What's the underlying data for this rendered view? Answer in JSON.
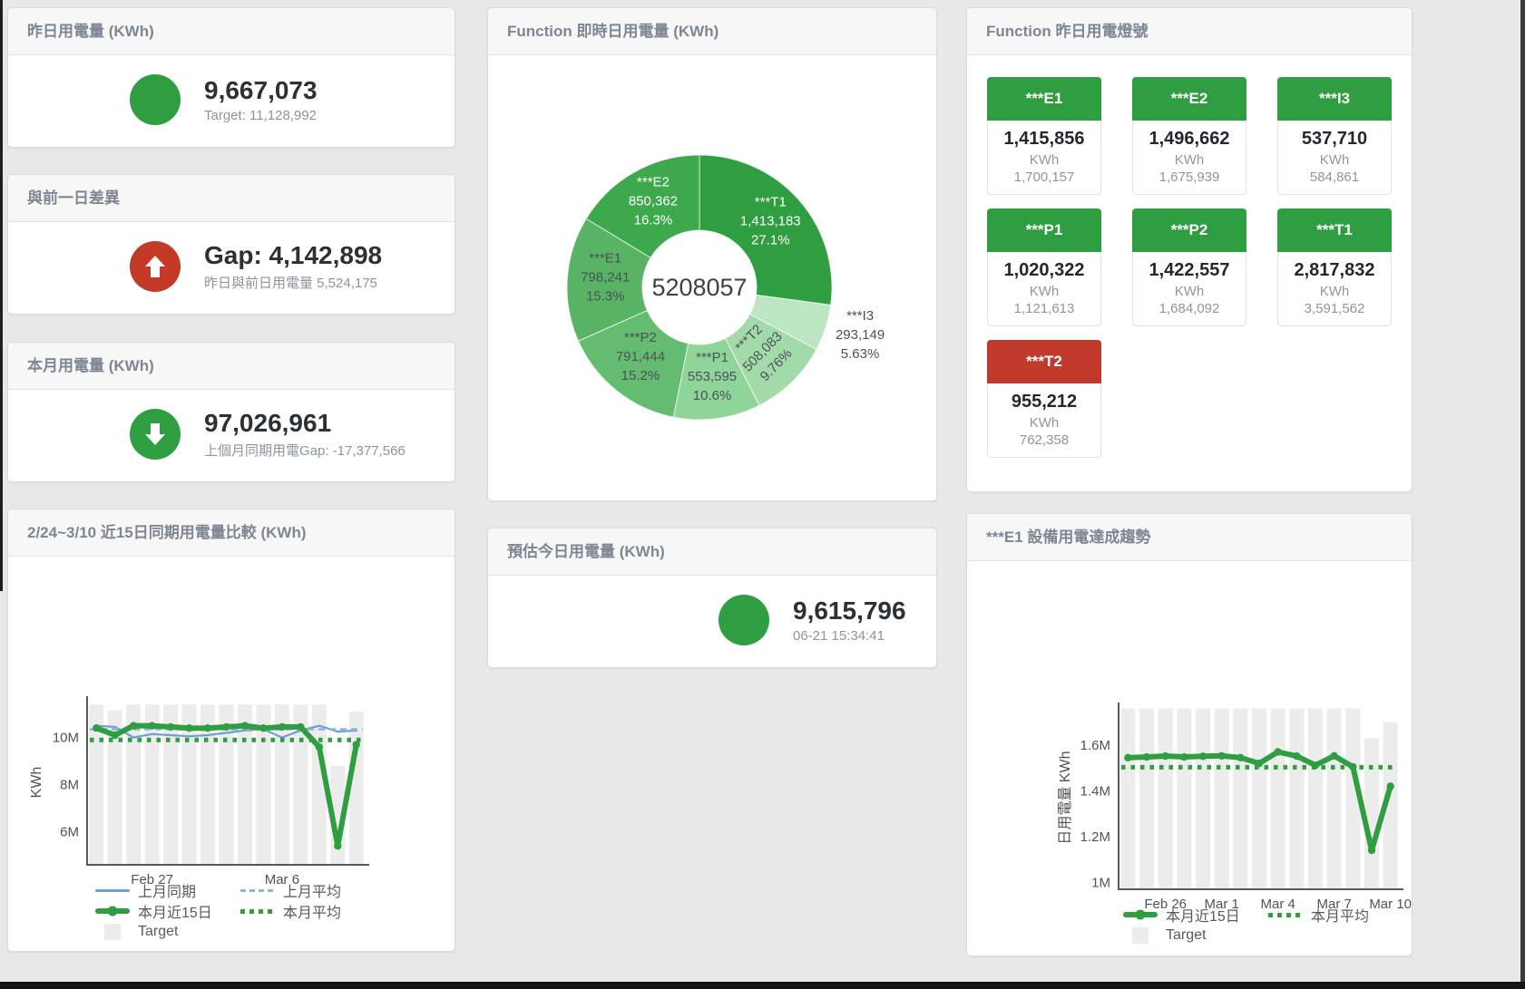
{
  "palette": {
    "green": "#2f9e41",
    "red_icon": "#c23a26",
    "red_tile": "#c0392b",
    "blue": "#6f9fd4",
    "blue_light": "#8ab3de",
    "target_bar": "#ececec"
  },
  "stat_cards": {
    "yesterday": {
      "title": "昨日用電量 (KWh)",
      "value": "9,667,073",
      "subtitle": "Target: 11,128,992",
      "icon": "circle",
      "icon_color": "#2f9e41"
    },
    "gap": {
      "title": "與前一日差異",
      "value": "Gap: 4,142,898",
      "subtitle": "昨日與前日用電量 5,524,175",
      "icon": "arrow-up",
      "icon_color": "#c23a26"
    },
    "month": {
      "title": "本月用電量 (KWh)",
      "value": "97,026,961",
      "subtitle": "上個月同期用電Gap: -17,377,566",
      "icon": "arrow-down",
      "icon_color": "#2f9e41"
    },
    "estimate": {
      "title": "預估今日用電量 (KWh)",
      "value": "9,615,796",
      "subtitle": "06-21 15:34:41",
      "icon": "circle",
      "icon_color": "#2f9e41"
    }
  },
  "lights": {
    "title": "Function 昨日用電燈號",
    "unit": "KWh",
    "tiles": [
      {
        "label": "***E1",
        "value": "1,415,856",
        "target": "1,700,157",
        "color": "#2f9e41"
      },
      {
        "label": "***E2",
        "value": "1,496,662",
        "target": "1,675,939",
        "color": "#2f9e41"
      },
      {
        "label": "***I3",
        "value": "537,710",
        "target": "584,861",
        "color": "#2f9e41"
      },
      {
        "label": "***P1",
        "value": "1,020,322",
        "target": "1,121,613",
        "color": "#2f9e41"
      },
      {
        "label": "***P2",
        "value": "1,422,557",
        "target": "1,684,092",
        "color": "#2f9e41"
      },
      {
        "label": "***T1",
        "value": "2,817,832",
        "target": "3,591,562",
        "color": "#2f9e41"
      },
      {
        "label": "***T2",
        "value": "955,212",
        "target": "762,358",
        "color": "#c0392b"
      }
    ]
  },
  "chart_data": [
    {
      "id": "donut",
      "type": "pie",
      "title": "Function 即時日用電量 (KWh)",
      "center_label": "5208057",
      "legend_position": "none",
      "slices": [
        {
          "name": "***T1",
          "value": "1,413,183",
          "pct_label": "27.1%",
          "pct": 27.1,
          "color": "#2f9e41"
        },
        {
          "name": "***I3",
          "value": "293,149",
          "pct_label": "5.63%",
          "pct": 5.63,
          "color": "#bce5c1",
          "outside": true
        },
        {
          "name": "***T2",
          "value": "508,083",
          "pct_label": "9.76%",
          "pct": 9.76,
          "color": "#a2daaa"
        },
        {
          "name": "***P1",
          "value": "553,595",
          "pct_label": "10.6%",
          "pct": 10.6,
          "color": "#8fd499"
        },
        {
          "name": "***P2",
          "value": "791,444",
          "pct_label": "15.2%",
          "pct": 15.2,
          "color": "#63bc6f"
        },
        {
          "name": "***E1",
          "value": "798,241",
          "pct_label": "15.3%",
          "pct": 15.3,
          "color": "#58b365"
        },
        {
          "name": "***E2",
          "value": "850,362",
          "pct_label": "16.3%",
          "pct": 16.3,
          "color": "#3ea84d"
        }
      ]
    },
    {
      "id": "compare15",
      "type": "line",
      "title": "2/24~3/10 近15日同期用電量比較 (KWh)",
      "ylabel": "KWh",
      "ylim": [
        4.6,
        11.6
      ],
      "unit_suffix": "M",
      "grid": false,
      "legend_position": "bottom",
      "yticks": [
        {
          "v": 6,
          "label": "6M"
        },
        {
          "v": 8,
          "label": "8M"
        },
        {
          "v": 10,
          "label": "10M"
        }
      ],
      "xticks": [
        {
          "i": 3,
          "label": "Feb 27"
        },
        {
          "i": 10,
          "label": "Mar 6"
        }
      ],
      "target_bars": {
        "name": "Target",
        "color": "#ececec",
        "values": [
          11.4,
          11.15,
          11.4,
          11.4,
          11.4,
          11.4,
          11.4,
          11.4,
          11.4,
          11.4,
          11.4,
          11.4,
          11.4,
          8.8,
          11.1
        ]
      },
      "series": [
        {
          "name": "上月同期",
          "kind": "line",
          "color": "blue",
          "width": 2.25,
          "values": [
            10.5,
            10.45,
            10.0,
            10.15,
            10.1,
            10.05,
            10.1,
            10.2,
            10.3,
            10.35,
            10.0,
            10.3,
            10.5,
            10.25,
            10.3
          ]
        },
        {
          "name": "上月平均",
          "kind": "dashed",
          "color": "blue_light",
          "width": 2.5,
          "value": 10.35
        },
        {
          "name": "本月近15日",
          "kind": "line",
          "color": "green",
          "width": 6,
          "markers": true,
          "values": [
            10.4,
            10.1,
            10.5,
            10.5,
            10.45,
            10.4,
            10.4,
            10.45,
            10.5,
            10.4,
            10.45,
            10.45,
            9.6,
            5.4,
            9.7
          ]
        },
        {
          "name": "本月平均",
          "kind": "dotted",
          "color": "green",
          "width": 5,
          "value": 9.9
        }
      ]
    },
    {
      "id": "e1trend",
      "type": "line",
      "title": "***E1 設備用電達成趨勢",
      "ylabel": "日用電量 KWh",
      "ylim": [
        0.97,
        1.77
      ],
      "unit_suffix": "M",
      "grid": false,
      "legend_position": "bottom",
      "yticks": [
        {
          "v": 1.0,
          "label": "1M"
        },
        {
          "v": 1.2,
          "label": "1.2M"
        },
        {
          "v": 1.4,
          "label": "1.4M"
        },
        {
          "v": 1.6,
          "label": "1.6M"
        }
      ],
      "xticks": [
        {
          "i": 2,
          "label": "Feb 26"
        },
        {
          "i": 5,
          "label": "Mar 1"
        },
        {
          "i": 8,
          "label": "Mar 4"
        },
        {
          "i": 11,
          "label": "Mar 7"
        },
        {
          "i": 14,
          "label": "Mar 10"
        }
      ],
      "target_bars": {
        "name": "Target",
        "color": "#ececec",
        "values": [
          1.76,
          1.76,
          1.76,
          1.76,
          1.76,
          1.76,
          1.76,
          1.76,
          1.76,
          1.76,
          1.76,
          1.76,
          1.76,
          1.63,
          1.7
        ]
      },
      "series": [
        {
          "name": "本月近15日",
          "kind": "line",
          "color": "green",
          "width": 6,
          "markers": true,
          "values": [
            1.545,
            1.548,
            1.552,
            1.548,
            1.551,
            1.553,
            1.545,
            1.52,
            1.57,
            1.552,
            1.512,
            1.553,
            1.505,
            1.14,
            1.42
          ]
        },
        {
          "name": "本月平均",
          "kind": "dotted",
          "color": "green",
          "width": 5,
          "value": 1.503
        }
      ]
    }
  ]
}
